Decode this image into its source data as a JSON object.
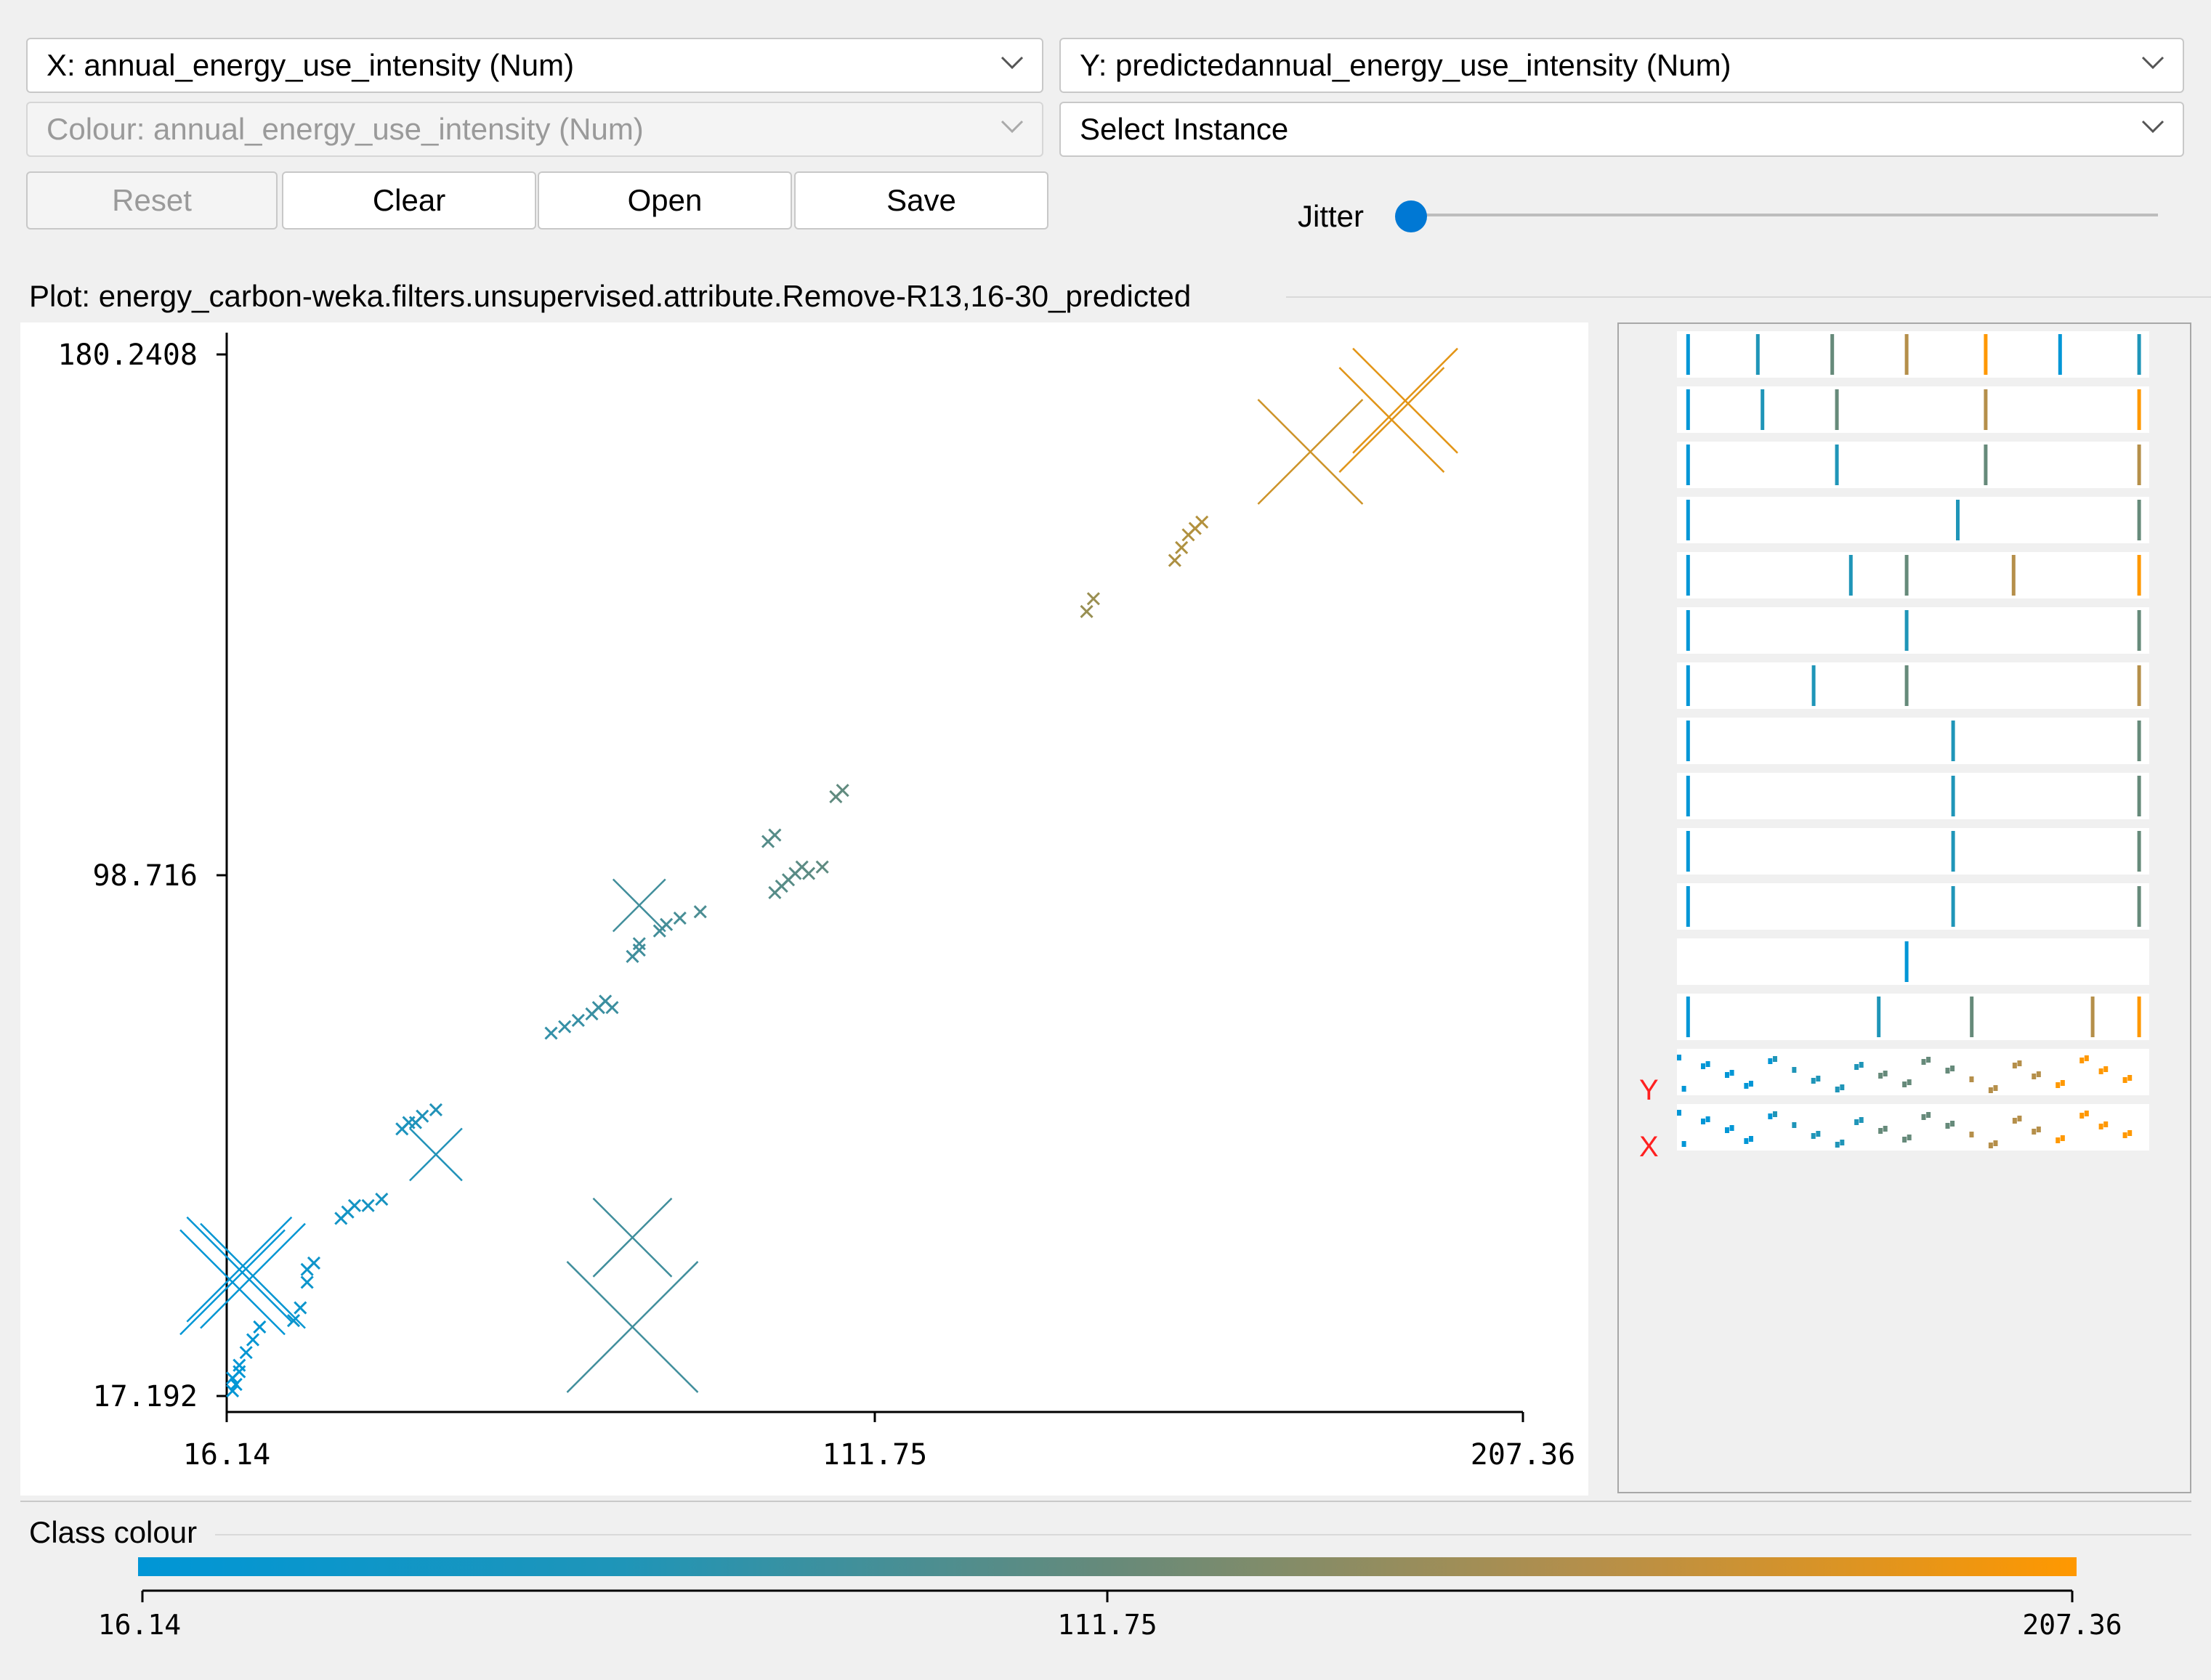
{
  "controls": {
    "x_axis": "X: annual_energy_use_intensity (Num)",
    "y_axis": "Y: predictedannual_energy_use_intensity (Num)",
    "colour": "Colour: annual_energy_use_intensity (Num)",
    "instance": "Select Instance",
    "reset": "Reset",
    "clear": "Clear",
    "open": "Open",
    "save": "Save",
    "jitter_label": "Jitter",
    "jitter_value": 0
  },
  "plot_title": "Plot: energy_carbon-weka.filters.unsupervised.attribute.Remove-R13,16-30_predicted",
  "chart_data": {
    "type": "scatter",
    "x_ticks": [
      "16.14",
      "111.75",
      "207.36"
    ],
    "y_ticks": [
      "180.2408",
      "98.716",
      "17.192"
    ],
    "xlim": [
      16.14,
      207.36
    ],
    "ylim": [
      17.192,
      180.2408
    ],
    "points": [
      [
        17,
        18
      ],
      [
        17,
        20
      ],
      [
        17.5,
        19
      ],
      [
        18,
        21
      ],
      [
        18,
        22
      ],
      [
        19,
        24
      ],
      [
        20,
        26
      ],
      [
        21,
        28
      ],
      [
        26,
        29
      ],
      [
        27,
        31
      ],
      [
        28,
        35
      ],
      [
        28,
        37
      ],
      [
        29,
        38
      ],
      [
        33,
        45
      ],
      [
        34,
        46
      ],
      [
        35,
        47
      ],
      [
        37,
        47
      ],
      [
        39,
        48
      ],
      [
        42,
        59
      ],
      [
        43,
        60
      ],
      [
        44,
        60
      ],
      [
        45,
        61
      ],
      [
        47,
        62
      ],
      [
        64,
        74
      ],
      [
        66,
        75
      ],
      [
        68,
        76
      ],
      [
        70,
        77
      ],
      [
        71,
        78
      ],
      [
        72,
        79
      ],
      [
        73,
        78
      ],
      [
        76,
        86
      ],
      [
        77,
        87
      ],
      [
        77,
        88
      ],
      [
        80,
        90
      ],
      [
        81,
        91
      ],
      [
        83,
        92
      ],
      [
        86,
        93
      ],
      [
        97,
        96
      ],
      [
        98,
        97
      ],
      [
        99,
        98
      ],
      [
        100,
        99
      ],
      [
        101,
        100
      ],
      [
        102,
        99
      ],
      [
        104,
        100
      ],
      [
        96,
        104
      ],
      [
        97,
        105
      ],
      [
        106,
        111
      ],
      [
        107,
        112
      ],
      [
        143,
        140
      ],
      [
        144,
        142
      ],
      [
        156,
        148
      ],
      [
        157,
        150
      ],
      [
        158,
        152
      ],
      [
        159,
        153
      ],
      [
        160,
        154
      ]
    ],
    "sizes": [
      [
        17,
        35,
        4
      ],
      [
        18,
        37,
        4
      ],
      [
        20,
        36,
        4
      ],
      [
        47,
        55,
        2
      ],
      [
        76,
        28,
        5
      ],
      [
        76,
        42,
        3
      ],
      [
        77,
        94,
        2
      ],
      [
        176,
        165,
        4
      ],
      [
        188,
        170,
        4
      ],
      [
        190,
        173,
        4
      ]
    ]
  },
  "matrix_row_labels": {
    "y": "Y",
    "x": "X"
  },
  "class_colour": {
    "label": "Class colour",
    "ticks": [
      "16.14",
      "111.75",
      "207.36"
    ],
    "low_color": "#0096d6",
    "mid_color": "#668a7a",
    "high_color": "#ff9800"
  }
}
